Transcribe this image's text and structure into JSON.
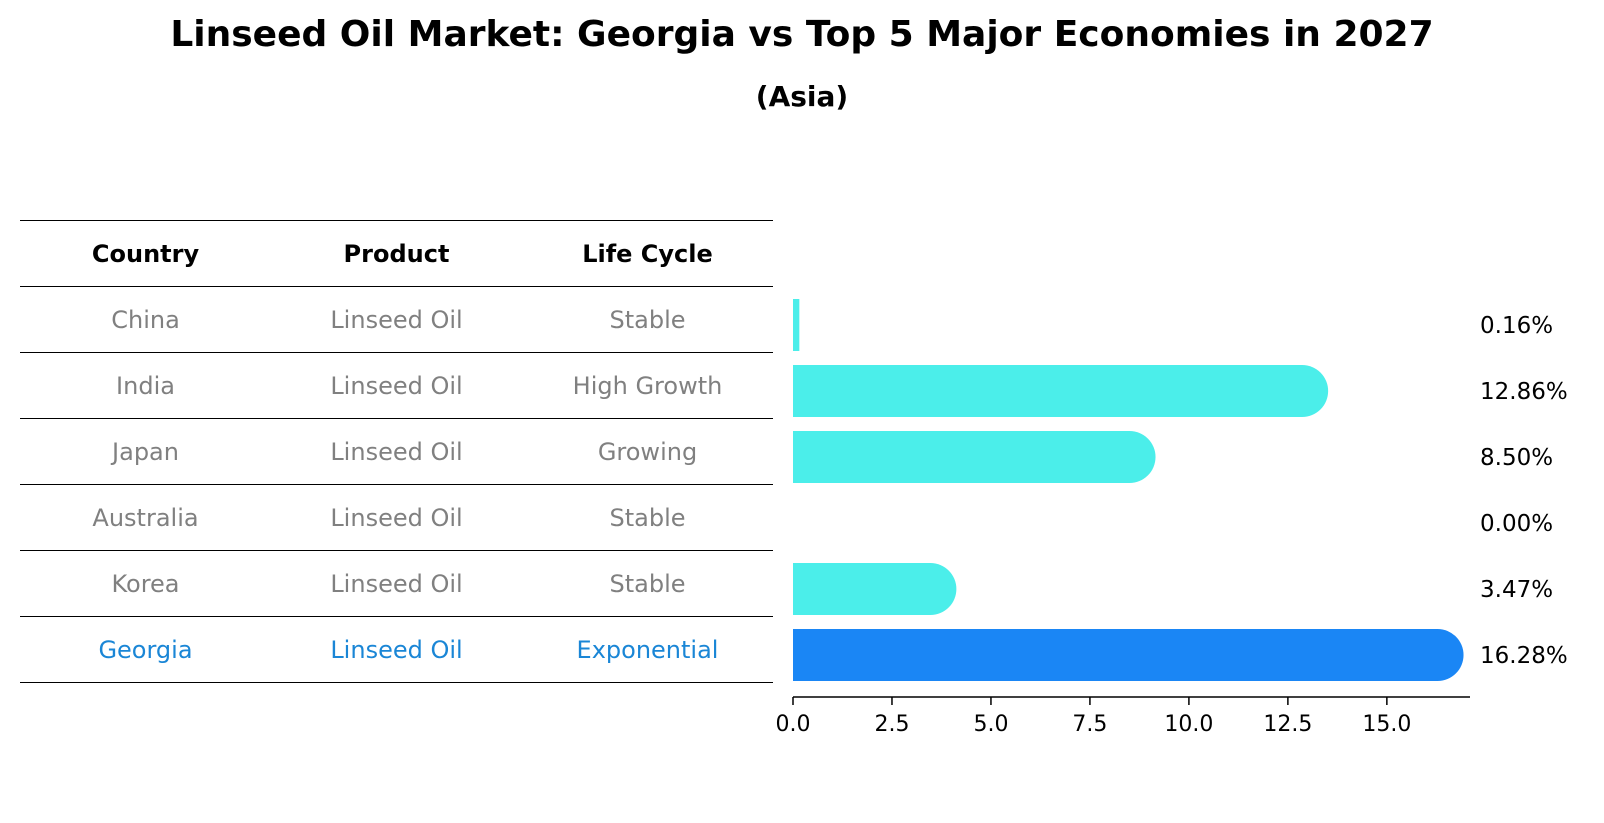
{
  "chart_data": {
    "type": "bar",
    "orientation": "horizontal",
    "title": "Linseed Oil Market: Georgia vs Top 5 Major Economies in 2027",
    "subtitle": "(Asia)",
    "table": {
      "headers": [
        "Country",
        "Product",
        "Life Cycle"
      ],
      "rows": [
        {
          "country": "China",
          "product": "Linseed Oil",
          "life_cycle": "Stable"
        },
        {
          "country": "India",
          "product": "Linseed Oil",
          "life_cycle": "High Growth"
        },
        {
          "country": "Japan",
          "product": "Linseed Oil",
          "life_cycle": "Growing"
        },
        {
          "country": "Australia",
          "product": "Linseed Oil",
          "life_cycle": "Stable"
        },
        {
          "country": "Korea",
          "product": "Linseed Oil",
          "life_cycle": "Stable"
        },
        {
          "country": "Georgia",
          "product": "Linseed Oil",
          "life_cycle": "Exponential"
        }
      ]
    },
    "categories": [
      "China",
      "India",
      "Japan",
      "Australia",
      "Korea",
      "Georgia"
    ],
    "values": [
      0.16,
      12.86,
      8.5,
      0.0,
      3.47,
      16.28
    ],
    "value_labels": [
      "0.16%",
      "12.86%",
      "8.50%",
      "0.00%",
      "3.47%",
      "16.28%"
    ],
    "highlight": "Georgia",
    "xlim": [
      0,
      17.1
    ],
    "xticks": [
      0.0,
      2.5,
      5.0,
      7.5,
      10.0,
      12.5,
      15.0
    ],
    "xtick_labels": [
      "0.0",
      "2.5",
      "5.0",
      "7.5",
      "10.0",
      "12.5",
      "15.0"
    ],
    "xlabel": "",
    "ylabel": "",
    "colors": {
      "bar": "#4beeea",
      "highlight_bar": "#1a86f5",
      "highlight_text": "#1a86d6",
      "muted_text": "#808080"
    }
  }
}
